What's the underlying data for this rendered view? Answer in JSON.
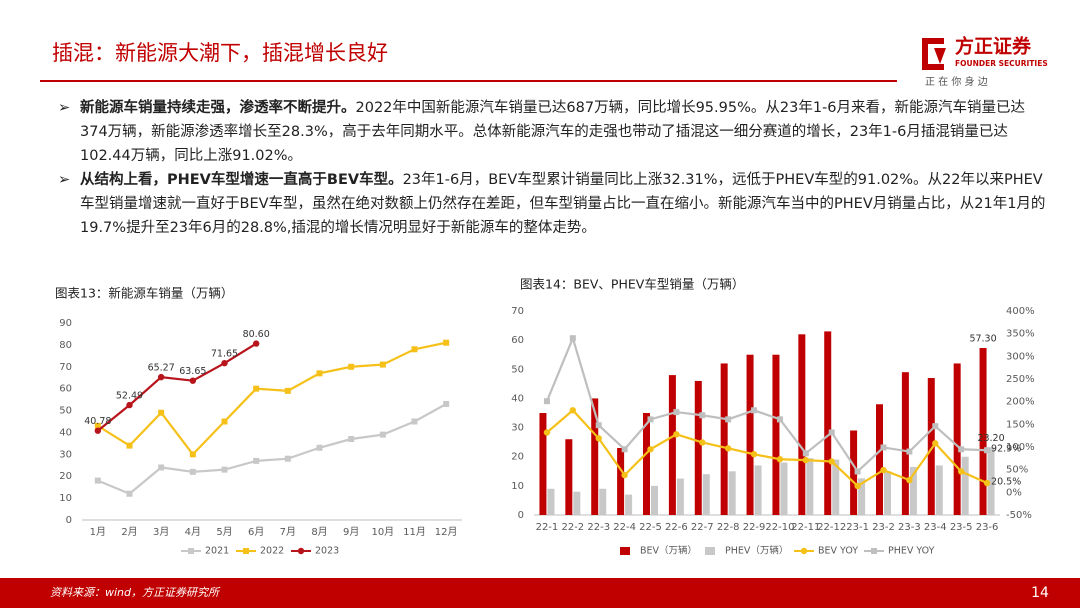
{
  "header": {
    "title": "插混：新能源大潮下，插混增长良好",
    "logo": "方正证券",
    "logo_en": "FOUNDER SECURITIES",
    "slogan": "正 在 你 身 边"
  },
  "bullets": [
    {
      "bold": "新能源车销量持续走强，渗透率不断提升。",
      "text": "2022年中国新能源汽车销量已达687万辆，同比增长95.95%。从23年1-6月来看，新能源汽车销量已达374万辆，新能源渗透率增长至28.3%，高于去年同期水平。总体新能源汽车的走强也带动了插混这一细分赛道的增长，23年1-6月插混销量已达102.44万辆，同比上涨91.02%。"
    },
    {
      "bold": "从结构上看，PHEV车型增速一直高于BEV车型。",
      "text": "23年1-6月，BEV车型累计销量同比上涨32.31%，远低于PHEV车型的91.02%。从22年以来PHEV车型销量增速就一直好于BEV车型，虽然在绝对数额上仍然存在差距，但车型销量占比一直在缩小。新能源汽车当中的PHEV月销量占比，从21年1月的19.7%提升至23年6月的28.8%,插混的增长情况明显好于新能源车的整体走势。"
    }
  ],
  "footer": {
    "source": "资料来源：wind，方正证券研究所",
    "page": "14"
  },
  "chart_data": [
    {
      "type": "line",
      "title": "图表13：新能源车销量（万辆）",
      "categories": [
        "1月",
        "2月",
        "3月",
        "4月",
        "5月",
        "6月",
        "7月",
        "8月",
        "9月",
        "10月",
        "11月",
        "12月"
      ],
      "ylim": [
        0,
        90
      ],
      "yticks": [
        0,
        10,
        20,
        30,
        40,
        50,
        60,
        70,
        80,
        90
      ],
      "grid": false,
      "series": [
        {
          "name": "2021",
          "color": "#c8c8c8",
          "marker": "square",
          "values": [
            18,
            12,
            24,
            22,
            23,
            27,
            28,
            33,
            37,
            39,
            45,
            53
          ]
        },
        {
          "name": "2022",
          "color": "#f5c018",
          "marker": "square",
          "values": [
            43,
            34,
            49,
            30,
            45,
            60,
            59,
            67,
            70,
            71,
            78,
            81
          ]
        },
        {
          "name": "2023",
          "color": "#b8141c",
          "marker": "circle",
          "values": [
            40.78,
            52.49,
            65.27,
            63.65,
            71.65,
            80.6,
            null,
            null,
            null,
            null,
            null,
            null
          ],
          "value_labels": [
            "40.78",
            "52.49",
            "65.27",
            "63.65",
            "71.65",
            "80.60",
            null,
            null,
            null,
            null,
            null,
            null
          ]
        }
      ]
    },
    {
      "type": "bar",
      "title": "图表14：BEV、PHEV车型销量（万辆）",
      "categories": [
        "22-1",
        "22-2",
        "22-3",
        "22-4",
        "22-5",
        "22-6",
        "22-7",
        "22-8",
        "22-9",
        "22-10",
        "22-11",
        "22-12",
        "23-1",
        "23-2",
        "23-3",
        "23-4",
        "23-5",
        "23-6"
      ],
      "ylim": [
        0,
        70
      ],
      "yticks": [
        0,
        10,
        20,
        30,
        40,
        50,
        60,
        70
      ],
      "y2lim": [
        -50,
        400
      ],
      "y2ticks": [
        {
          "value": -50,
          "label": "-50%"
        },
        {
          "value": 0,
          "label": "0%"
        },
        {
          "value": 50,
          "label": "50%"
        },
        {
          "value": 100,
          "label": "100%"
        },
        {
          "value": 150,
          "label": "150%"
        },
        {
          "value": 200,
          "label": "200%"
        },
        {
          "value": 250,
          "label": "250%"
        },
        {
          "value": 300,
          "label": "300%"
        },
        {
          "value": 350,
          "label": "350%"
        },
        {
          "value": 400,
          "label": "400%"
        }
      ],
      "grid": false,
      "series": [
        {
          "name": "BEV（万辆）",
          "color": "#c00000",
          "values": [
            35,
            26,
            40,
            23,
            35,
            48,
            46,
            52,
            55,
            55,
            62,
            63,
            29,
            38,
            49,
            47,
            52,
            57.3
          ],
          "value_labels": [
            null,
            null,
            null,
            null,
            null,
            null,
            null,
            null,
            null,
            null,
            null,
            null,
            null,
            null,
            null,
            null,
            null,
            "57.30"
          ]
        },
        {
          "name": "PHEV（万辆）",
          "color": "#c8c8c8",
          "values": [
            9,
            8,
            9,
            7,
            10,
            12.5,
            14,
            15,
            17,
            18,
            19.5,
            19,
            12.6,
            15,
            16.5,
            17,
            20,
            23.2
          ],
          "value_labels": [
            null,
            null,
            null,
            null,
            null,
            null,
            null,
            null,
            null,
            null,
            null,
            null,
            null,
            null,
            null,
            null,
            null,
            "23.20"
          ]
        },
        {
          "name": "BEV YOY",
          "color": "#f5c018",
          "type": "line",
          "axis": "y2",
          "marker": "circle",
          "values": [
            132,
            181,
            119,
            38,
            95,
            128,
            110,
            97,
            84,
            73,
            71,
            68,
            14,
            49,
            27,
            108,
            46,
            20.5
          ],
          "value_labels": [
            null,
            null,
            null,
            null,
            null,
            null,
            null,
            null,
            null,
            null,
            null,
            null,
            null,
            null,
            null,
            null,
            null,
            "20.5%"
          ]
        },
        {
          "name": "PHEV YOY",
          "color": "#bfbfbf",
          "type": "line",
          "axis": "y2",
          "marker": "square",
          "values": [
            201,
            340,
            148,
            95,
            161,
            177,
            170,
            161,
            181,
            161,
            86,
            132,
            46,
            99,
            90,
            146,
            95,
            92.9
          ],
          "value_labels": [
            null,
            null,
            null,
            null,
            null,
            null,
            null,
            null,
            null,
            null,
            null,
            null,
            null,
            null,
            null,
            null,
            null,
            "92.9%"
          ]
        }
      ]
    }
  ]
}
